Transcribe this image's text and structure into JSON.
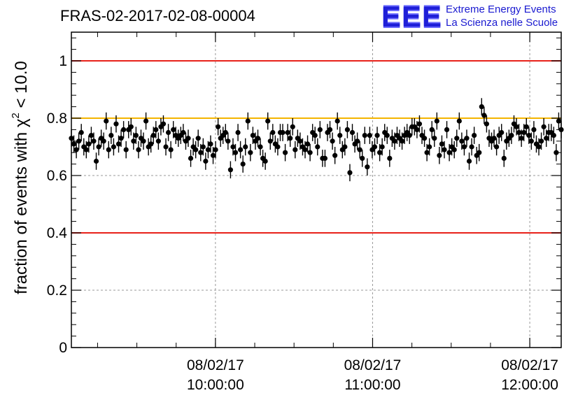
{
  "page": {
    "title": "FRAS-02-2017-02-08-00004",
    "logo": {
      "mark": "EEE",
      "line1": "Extreme Energy Events",
      "line2": "La Scienza nelle Scuole"
    }
  },
  "chart_data": {
    "type": "scatter",
    "title": "FRAS-02-2017-02-08-00004",
    "xlabel": "",
    "ylabel": "fraction of events with χ² < 10.0",
    "ylabel_parts": {
      "pre": "fraction of events with ",
      "sym": "χ",
      "sup": "2",
      "post": " < 10.0"
    },
    "ylim": [
      0,
      1.1
    ],
    "yticks": [
      0,
      0.2,
      0.4,
      0.6,
      0.8,
      1
    ],
    "ytick_labels": [
      "0",
      "0.2",
      "0.4",
      "0.6",
      "0.8",
      "1"
    ],
    "xlim": [
      "2017-02-08T09:05:00",
      "2017-02-08T12:12:00"
    ],
    "xticks": [
      {
        "date": "08/02/17",
        "time": "10:00:00",
        "t": "2017-02-08T10:00:00"
      },
      {
        "date": "08/02/17",
        "time": "11:00:00",
        "t": "2017-02-08T11:00:00"
      },
      {
        "date": "08/02/17",
        "time": "12:00:00",
        "t": "2017-02-08T12:00:00"
      }
    ],
    "grid": true,
    "reference_lines": [
      {
        "y": 1.0,
        "color": "#e8211a"
      },
      {
        "y": 0.4,
        "color": "#e8211a"
      },
      {
        "y": 0.8,
        "color": "#f4b400"
      }
    ],
    "marker_color": "#000000",
    "error_bar": 0.03,
    "series": [
      {
        "x_start": "2017-02-08T09:05:00",
        "x_end": "2017-02-08T12:12:00",
        "values": [
          0.73,
          0.71,
          0.69,
          0.72,
          0.75,
          0.7,
          0.69,
          0.71,
          0.74,
          0.72,
          0.65,
          0.7,
          0.73,
          0.72,
          0.79,
          0.69,
          0.74,
          0.7,
          0.78,
          0.71,
          0.73,
          0.76,
          0.69,
          0.76,
          0.77,
          0.72,
          0.74,
          0.69,
          0.73,
          0.72,
          0.79,
          0.7,
          0.71,
          0.74,
          0.76,
          0.72,
          0.77,
          0.78,
          0.7,
          0.75,
          0.69,
          0.76,
          0.74,
          0.73,
          0.74,
          0.75,
          0.72,
          0.73,
          0.66,
          0.7,
          0.69,
          0.73,
          0.68,
          0.7,
          0.65,
          0.69,
          0.71,
          0.67,
          0.69,
          0.77,
          0.73,
          0.74,
          0.75,
          0.72,
          0.62,
          0.7,
          0.68,
          0.75,
          0.69,
          0.64,
          0.7,
          0.79,
          0.68,
          0.74,
          0.72,
          0.73,
          0.7,
          0.66,
          0.65,
          0.79,
          0.72,
          0.75,
          0.71,
          0.7,
          0.75,
          0.75,
          0.68,
          0.75,
          0.73,
          0.77,
          0.69,
          0.73,
          0.72,
          0.7,
          0.69,
          0.71,
          0.68,
          0.75,
          0.74,
          0.7,
          0.76,
          0.66,
          0.66,
          0.75,
          0.76,
          0.72,
          0.67,
          0.79,
          0.74,
          0.69,
          0.7,
          0.76,
          0.61,
          0.75,
          0.71,
          0.72,
          0.69,
          0.66,
          0.74,
          0.63,
          0.74,
          0.69,
          0.7,
          0.74,
          0.68,
          0.7,
          0.75,
          0.74,
          0.66,
          0.73,
          0.72,
          0.74,
          0.73,
          0.72,
          0.74,
          0.75,
          0.74,
          0.77,
          0.77,
          0.76,
          0.78,
          0.74,
          0.73,
          0.68,
          0.7,
          0.76,
          0.73,
          0.79,
          0.67,
          0.71,
          0.69,
          0.76,
          0.68,
          0.7,
          0.69,
          0.73,
          0.79,
          0.72,
          0.7,
          0.73,
          0.65,
          0.7,
          0.74,
          0.67,
          0.68,
          0.84,
          0.81,
          0.78,
          0.73,
          0.72,
          0.73,
          0.7,
          0.74,
          0.75,
          0.66,
          0.72,
          0.73,
          0.74,
          0.78,
          0.77,
          0.75,
          0.73,
          0.75,
          0.77,
          0.74,
          0.72,
          0.76,
          0.71,
          0.7,
          0.72,
          0.77,
          0.73,
          0.75,
          0.75,
          0.74,
          0.68,
          0.79,
          0.76
        ]
      }
    ]
  }
}
